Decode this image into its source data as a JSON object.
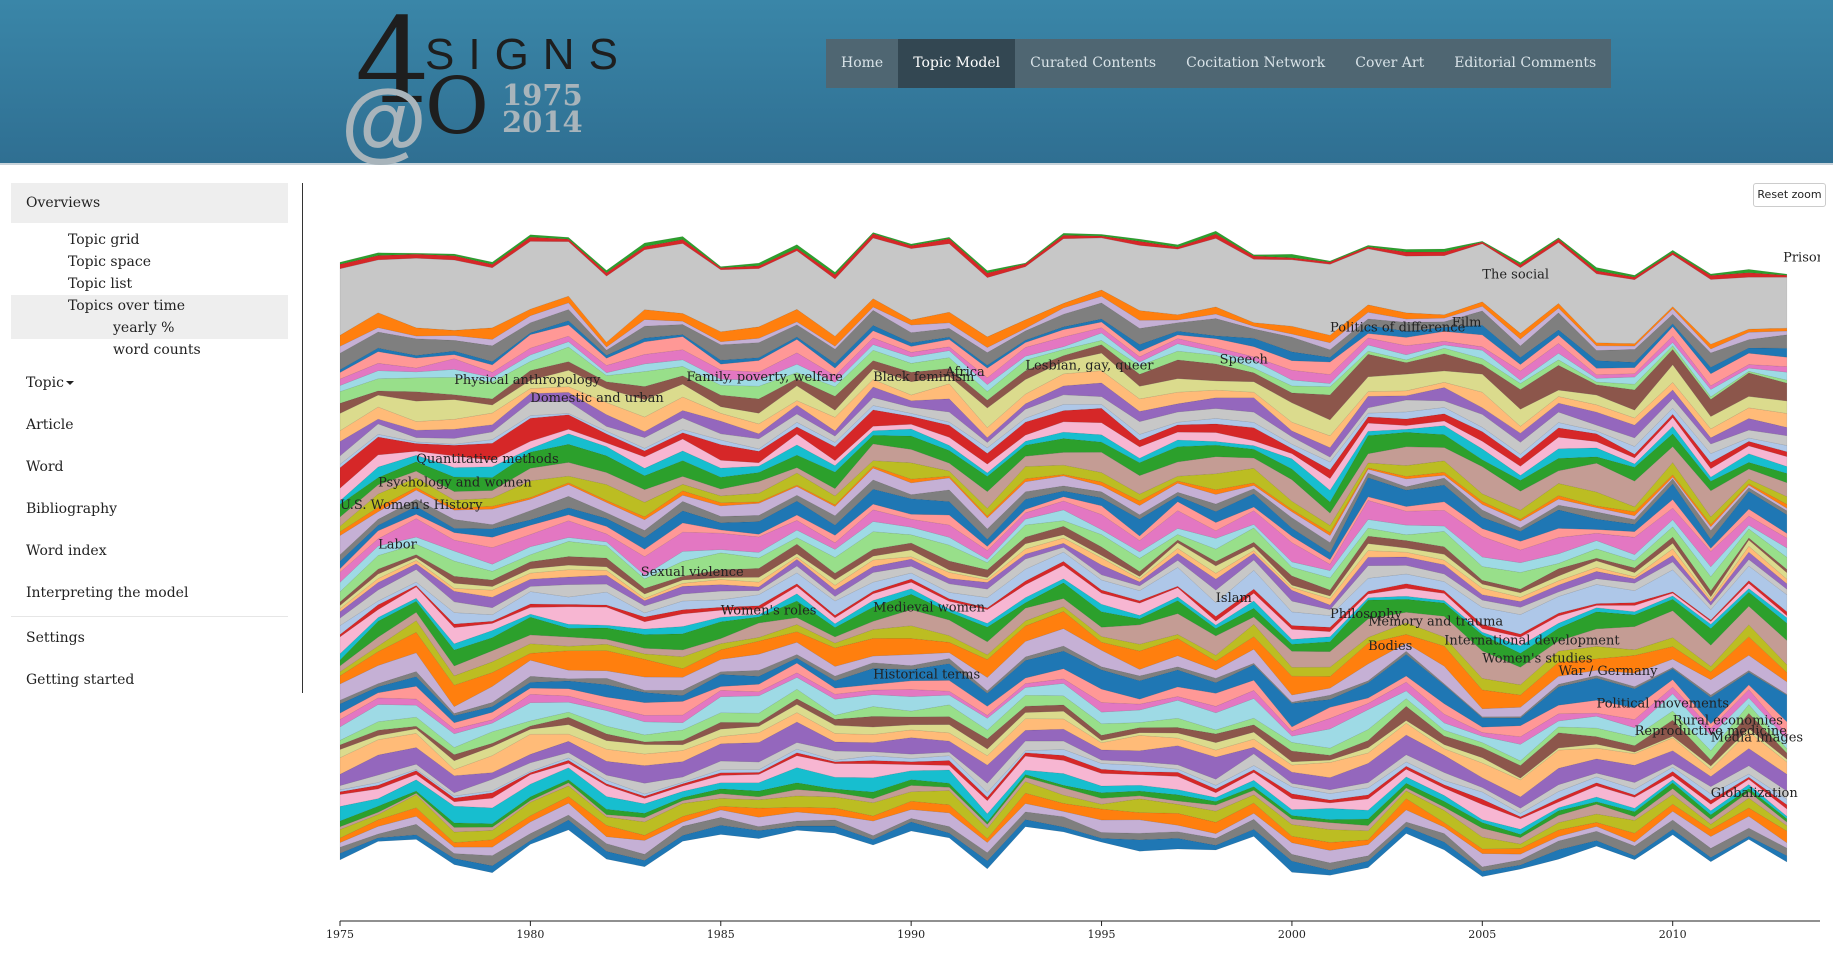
{
  "header": {
    "logo": {
      "four": "4",
      "signs": "SIGNS",
      "at": "@",
      "zero": "O",
      "year_start": "1975",
      "year_end": "2014"
    },
    "nav": [
      {
        "label": "Home",
        "active": false
      },
      {
        "label": "Topic Model",
        "active": true
      },
      {
        "label": "Curated Contents",
        "active": false
      },
      {
        "label": "Cocitation Network",
        "active": false
      },
      {
        "label": "Cover Art",
        "active": false
      },
      {
        "label": "Editorial Comments",
        "active": false
      }
    ]
  },
  "sidebar": {
    "overviews": "Overviews",
    "topic_grid": "Topic grid",
    "topic_space": "Topic space",
    "topic_list": "Topic list",
    "topics_over_time": "Topics over time",
    "yearly_pct": "yearly %",
    "word_counts": "word counts",
    "topic": "Topic",
    "article": "Article",
    "word": "Word",
    "bibliography": "Bibliography",
    "word_index": "Word index",
    "interpreting": "Interpreting the model",
    "settings": "Settings",
    "getting_started": "Getting started"
  },
  "reset_zoom": "Reset zoom",
  "colors": {
    "header": "#3a86a8",
    "nav_bg": "#4f6672",
    "nav_active": "#334752",
    "palette": [
      "#1f77b4",
      "#ff7f0e",
      "#2ca02c",
      "#d62728",
      "#9467bd",
      "#8c564b",
      "#e377c2",
      "#7f7f7f",
      "#bcbd22",
      "#17becf",
      "#aec7e8",
      "#ffbb78",
      "#98df8a",
      "#ff9896",
      "#c5b0d5",
      "#c49c94",
      "#f7b6d2",
      "#c7c7c7",
      "#dbdb8d",
      "#9edae5"
    ]
  },
  "chart_data": {
    "type": "area",
    "stacked": true,
    "x": [
      1975,
      1976,
      1977,
      1978,
      1979,
      1980,
      1981,
      1982,
      1983,
      1984,
      1985,
      1986,
      1987,
      1988,
      1989,
      1990,
      1991,
      1992,
      1993,
      1994,
      1995,
      1996,
      1997,
      1998,
      1999,
      2000,
      2001,
      2002,
      2003,
      2004,
      2005,
      2006,
      2007,
      2008,
      2009,
      2010,
      2011,
      2012,
      2013
    ],
    "xlim": [
      1975,
      2014
    ],
    "x_ticks": [
      "1975",
      "1980",
      "1985",
      "1990",
      "1995",
      "2000",
      "2005",
      "2010"
    ],
    "labels": [
      {
        "text": "Prisons",
        "x": 2012.9,
        "y": 0.962
      },
      {
        "text": "The social",
        "x": 2005.0,
        "y": 0.935
      },
      {
        "text": "Film",
        "x": 2004.2,
        "y": 0.86
      },
      {
        "text": "Politics of difference",
        "x": 2001.0,
        "y": 0.852
      },
      {
        "text": "Speech",
        "x": 1998.1,
        "y": 0.802
      },
      {
        "text": "Lesbian, gay, queer",
        "x": 1993.0,
        "y": 0.793
      },
      {
        "text": "Africa",
        "x": 1990.9,
        "y": 0.783
      },
      {
        "text": "Black feminism",
        "x": 1989.0,
        "y": 0.775
      },
      {
        "text": "Family, poverty, welfare",
        "x": 1984.1,
        "y": 0.775
      },
      {
        "text": "Physical anthropology",
        "x": 1978.0,
        "y": 0.77
      },
      {
        "text": "Domestic and urban",
        "x": 1980.0,
        "y": 0.742
      },
      {
        "text": "Quantitative methods",
        "x": 1977.0,
        "y": 0.647
      },
      {
        "text": "Psychology and women",
        "x": 1976.0,
        "y": 0.61
      },
      {
        "text": "U.S. Women's History",
        "x": 1975.0,
        "y": 0.575
      },
      {
        "text": "Labor",
        "x": 1976.0,
        "y": 0.513
      },
      {
        "text": "Sexual violence",
        "x": 1982.9,
        "y": 0.47
      },
      {
        "text": "Women's roles",
        "x": 1985.0,
        "y": 0.41
      },
      {
        "text": "Medieval women",
        "x": 1989.0,
        "y": 0.415
      },
      {
        "text": "Historical terms",
        "x": 1989.0,
        "y": 0.31
      },
      {
        "text": "Islam",
        "x": 1998.0,
        "y": 0.43
      },
      {
        "text": "Philosophy",
        "x": 2001.0,
        "y": 0.405
      },
      {
        "text": "Memory and trauma",
        "x": 2002.0,
        "y": 0.393
      },
      {
        "text": "Bodies",
        "x": 2002.0,
        "y": 0.355
      },
      {
        "text": "International development",
        "x": 2004.0,
        "y": 0.363
      },
      {
        "text": "Women's studies",
        "x": 2005.0,
        "y": 0.335
      },
      {
        "text": "War / Germany",
        "x": 2007.0,
        "y": 0.316
      },
      {
        "text": "Political movements",
        "x": 2008.0,
        "y": 0.265
      },
      {
        "text": "Rural economies",
        "x": 2010.0,
        "y": 0.238
      },
      {
        "text": "Reproductive medicine",
        "x": 2009.0,
        "y": 0.222
      },
      {
        "text": "Media images",
        "x": 2011.0,
        "y": 0.212
      },
      {
        "text": "Globalization",
        "x": 2011.0,
        "y": 0.125
      }
    ]
  }
}
